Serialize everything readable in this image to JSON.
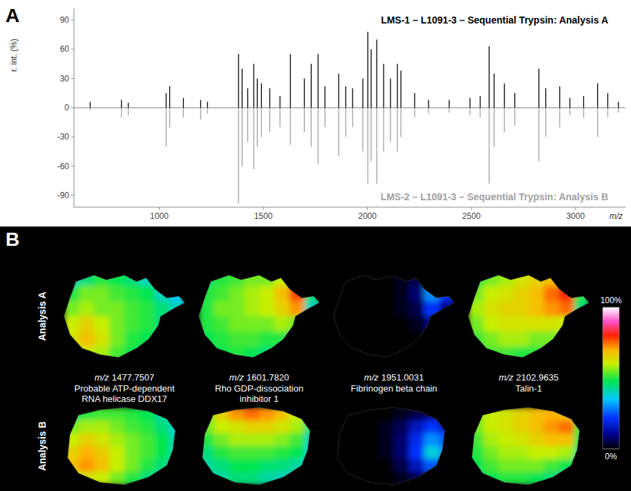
{
  "chart_data": [
    {
      "type": "stem",
      "panel": "A",
      "x_label": "m/z",
      "y_label": "r. int. (%)",
      "xlim": [
        590,
        3240
      ],
      "xticks": [
        1000,
        1500,
        2000,
        2500,
        3000
      ],
      "ylim": [
        -102,
        102
      ],
      "yticks": [
        -90,
        -60,
        -30,
        0,
        30,
        60,
        90
      ],
      "grid": false,
      "series": [
        {
          "name": "LMS-1 – L1091-3 – Sequential Trypsin: Analysis A",
          "color": "#000000",
          "x": [
            668,
            818,
            851,
            1033,
            1050,
            1116,
            1199,
            1232,
            1381,
            1398,
            1425,
            1454,
            1471,
            1491,
            1531,
            1580,
            1630,
            1697,
            1730,
            1763,
            1796,
            1862,
            1896,
            1929,
            1978,
            2002,
            2018,
            2045,
            2078,
            2111,
            2144,
            2161,
            2227,
            2294,
            2393,
            2493,
            2542,
            2585,
            2609,
            2658,
            2708,
            2824,
            2857,
            2924,
            2973,
            3039,
            3106,
            3155,
            3206
          ],
          "values": [
            6,
            8,
            5,
            15,
            22,
            10,
            8,
            6,
            55,
            40,
            20,
            45,
            30,
            25,
            20,
            12,
            55,
            30,
            45,
            55,
            22,
            35,
            22,
            20,
            30,
            78,
            60,
            70,
            45,
            30,
            45,
            38,
            15,
            8,
            8,
            10,
            12,
            63,
            35,
            25,
            15,
            40,
            20,
            22,
            10,
            12,
            25,
            15,
            6
          ]
        },
        {
          "name": "LMS-2 – L1091-3 – Sequential Trypsin: Analysis B",
          "color": "#a0a0a0",
          "x": [
            668,
            818,
            851,
            1033,
            1050,
            1116,
            1199,
            1232,
            1381,
            1398,
            1425,
            1454,
            1471,
            1491,
            1531,
            1580,
            1630,
            1697,
            1730,
            1763,
            1796,
            1862,
            1896,
            1929,
            1978,
            2002,
            2018,
            2045,
            2078,
            2111,
            2144,
            2161,
            2227,
            2294,
            2393,
            2493,
            2542,
            2585,
            2609,
            2658,
            2708,
            2824,
            2857,
            2924,
            2973,
            3039,
            3106,
            3155,
            3206
          ],
          "values": [
            -3,
            -10,
            -8,
            -40,
            -20,
            -10,
            -12,
            -6,
            -98,
            -60,
            -35,
            -63,
            -40,
            -30,
            -25,
            -20,
            -38,
            -25,
            -40,
            -58,
            -20,
            -50,
            -30,
            -20,
            -45,
            -78,
            -55,
            -78,
            -45,
            -35,
            -45,
            -30,
            -10,
            -6,
            -5,
            -8,
            -10,
            -78,
            -40,
            -25,
            -18,
            -55,
            -30,
            -20,
            -8,
            -10,
            -30,
            -10,
            -5
          ]
        }
      ]
    },
    {
      "type": "heatmap",
      "panel": "B",
      "mz_label": "m/z",
      "rows": [
        "Analysis A",
        "Analysis B"
      ],
      "columns": [
        {
          "mz": "1477.7507",
          "name": "Probable ATP-dependent RNA helicase DDX17"
        },
        {
          "mz": "1601.7820",
          "name": "Rho GDP-dissociation inhibitor 1"
        },
        {
          "mz": "1951.0031",
          "name": "Fibrinogen beta chain"
        },
        {
          "mz": "2102.9635",
          "name": "Talin-1"
        }
      ],
      "colorbar": {
        "range": [
          0,
          100
        ],
        "ticks": [
          {
            "value": 0,
            "label": "0%"
          },
          {
            "value": 100,
            "label": "100%"
          }
        ]
      },
      "cells": [
        [
          [
            [
              40,
              45,
              50,
              48,
              45,
              40,
              35,
              30
            ],
            [
              50,
              55,
              55,
              52,
              50,
              48,
              40,
              35
            ],
            [
              55,
              58,
              55,
              55,
              52,
              50,
              45,
              40
            ],
            [
              60,
              65,
              60,
              55,
              52,
              50,
              45,
              40
            ],
            [
              62,
              68,
              62,
              55,
              50,
              48,
              42,
              38
            ],
            [
              55,
              60,
              58,
              52,
              48,
              45,
              40,
              35
            ]
          ],
          [
            [
              45,
              50,
              52,
              55,
              55,
              60,
              60,
              40
            ],
            [
              50,
              52,
              55,
              58,
              60,
              68,
              78,
              45
            ],
            [
              50,
              55,
              55,
              58,
              60,
              65,
              72,
              40
            ],
            [
              50,
              52,
              55,
              55,
              55,
              58,
              55,
              35
            ],
            [
              48,
              50,
              52,
              52,
              50,
              50,
              45,
              30
            ],
            [
              45,
              48,
              50,
              48,
              45,
              42,
              38,
              30
            ]
          ],
          [
            [
              0,
              0,
              0,
              0,
              2,
              5,
              25,
              15
            ],
            [
              0,
              0,
              0,
              0,
              2,
              8,
              30,
              20
            ],
            [
              0,
              0,
              0,
              0,
              2,
              5,
              22,
              10
            ],
            [
              0,
              0,
              0,
              0,
              0,
              2,
              8,
              2
            ],
            [
              0,
              0,
              0,
              0,
              0,
              0,
              2,
              0
            ],
            [
              0,
              0,
              0,
              0,
              0,
              0,
              0,
              0
            ]
          ],
          [
            [
              50,
              55,
              58,
              62,
              65,
              68,
              65,
              45
            ],
            [
              55,
              60,
              62,
              65,
              68,
              75,
              80,
              50
            ],
            [
              58,
              62,
              65,
              65,
              68,
              72,
              75,
              45
            ],
            [
              55,
              60,
              62,
              62,
              62,
              62,
              60,
              40
            ],
            [
              52,
              55,
              58,
              58,
              55,
              55,
              50,
              38
            ],
            [
              48,
              52,
              52,
              50,
              50,
              48,
              45,
              35
            ]
          ]
        ],
        [
          [
            [
              45,
              50,
              52,
              52,
              50,
              48,
              42,
              35
            ],
            [
              55,
              58,
              58,
              55,
              52,
              50,
              45,
              38
            ],
            [
              60,
              65,
              62,
              58,
              55,
              52,
              48,
              40
            ],
            [
              65,
              70,
              66,
              60,
              55,
              52,
              48,
              40
            ],
            [
              68,
              72,
              68,
              60,
              55,
              50,
              45,
              38
            ],
            [
              60,
              62,
              60,
              55,
              50,
              45,
              40,
              35
            ]
          ],
          [
            [
              55,
              65,
              72,
              75,
              72,
              68,
              60,
              45
            ],
            [
              55,
              60,
              62,
              65,
              65,
              62,
              58,
              45
            ],
            [
              50,
              55,
              58,
              58,
              58,
              56,
              52,
              40
            ],
            [
              45,
              50,
              52,
              52,
              52,
              50,
              48,
              38
            ],
            [
              42,
              45,
              48,
              48,
              46,
              45,
              42,
              35
            ],
            [
              40,
              42,
              45,
              45,
              42,
              40,
              38,
              32
            ]
          ],
          [
            [
              0,
              0,
              0,
              0,
              2,
              5,
              8,
              3
            ],
            [
              0,
              0,
              0,
              2,
              6,
              15,
              22,
              15
            ],
            [
              0,
              0,
              0,
              2,
              8,
              20,
              30,
              25
            ],
            [
              0,
              0,
              0,
              2,
              8,
              22,
              38,
              30
            ],
            [
              0,
              0,
              0,
              0,
              5,
              15,
              25,
              15
            ],
            [
              0,
              0,
              0,
              0,
              2,
              5,
              8,
              3
            ]
          ],
          [
            [
              55,
              60,
              62,
              65,
              68,
              70,
              68,
              50
            ],
            [
              55,
              60,
              62,
              65,
              68,
              72,
              75,
              52
            ],
            [
              52,
              58,
              60,
              62,
              65,
              68,
              68,
              48
            ],
            [
              50,
              55,
              58,
              58,
              60,
              60,
              58,
              45
            ],
            [
              48,
              52,
              55,
              55,
              55,
              52,
              48,
              40
            ],
            [
              45,
              48,
              50,
              50,
              48,
              45,
              42,
              35
            ]
          ]
        ]
      ]
    }
  ]
}
